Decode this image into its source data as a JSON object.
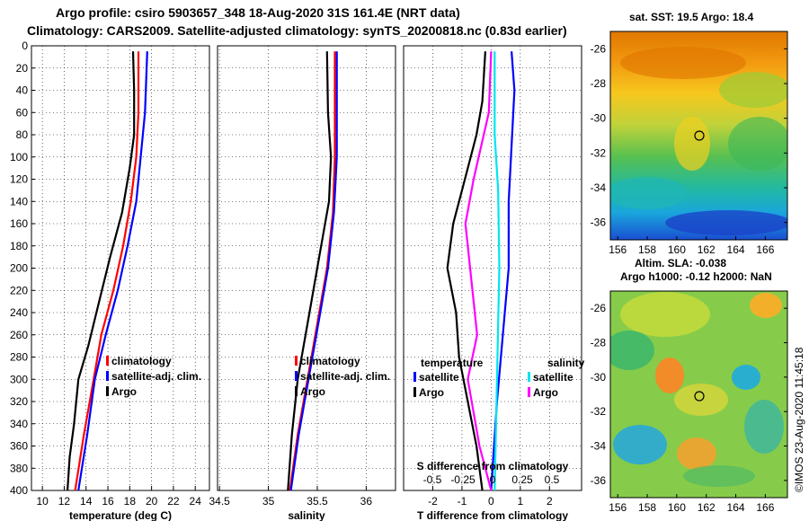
{
  "title_line1": "Argo profile: csiro 5903657_348 18-Aug-2020 31S 161.4E (NRT data)",
  "title_line2": "Climatology: CARS2009. Satellite-adjusted climatology: synTS_20200818.nc (0.83d earlier)",
  "map_top_title": "sat. SST: 19.5 Argo: 18.4",
  "map_bottom_title_1": "Altim. SLA: -0.038",
  "map_bottom_title_2": "Argo h1000: -0.12 h2000: NaN",
  "stamp": "©IMOS 23-Aug-2020 11:45:18",
  "colors": {
    "climatology": "#ff0000",
    "satellite": "#0000ff",
    "argo": "#000000",
    "sal_satellite": "#00e5ee",
    "sal_argo": "#ff00ff"
  },
  "chart_data": [
    {
      "type": "line",
      "name": "temperature",
      "xlabel": "temperature (deg C)",
      "xlim": [
        9,
        25.3
      ],
      "ylim": [
        400,
        0
      ],
      "xticks": [
        10,
        12,
        14,
        16,
        18,
        20,
        22,
        24
      ],
      "yticks": [
        0,
        20,
        40,
        60,
        80,
        100,
        120,
        140,
        160,
        180,
        200,
        220,
        240,
        260,
        280,
        300,
        320,
        340,
        360,
        380,
        400
      ],
      "legend": [
        "climatology",
        "satellite-adj. clim.",
        "Argo"
      ],
      "series": [
        {
          "name": "climatology",
          "points": [
            [
              18.8,
              5
            ],
            [
              18.8,
              60
            ],
            [
              18.6,
              100
            ],
            [
              18.1,
              140
            ],
            [
              17.4,
              180
            ],
            [
              16.5,
              220
            ],
            [
              15.4,
              260
            ],
            [
              14.7,
              300
            ],
            [
              13.8,
              350
            ],
            [
              13.0,
              400
            ]
          ]
        },
        {
          "name": "satellite-adj. clim.",
          "points": [
            [
              19.6,
              5
            ],
            [
              19.4,
              60
            ],
            [
              19.0,
              100
            ],
            [
              18.6,
              140
            ],
            [
              17.8,
              180
            ],
            [
              16.9,
              220
            ],
            [
              15.8,
              260
            ],
            [
              14.8,
              300
            ],
            [
              14.1,
              350
            ],
            [
              13.3,
              400
            ]
          ]
        },
        {
          "name": "Argo",
          "points": [
            [
              18.3,
              5
            ],
            [
              18.4,
              40
            ],
            [
              18.4,
              80
            ],
            [
              18.0,
              110
            ],
            [
              17.3,
              150
            ],
            [
              16.2,
              190
            ],
            [
              15.2,
              230
            ],
            [
              14.2,
              270
            ],
            [
              13.3,
              300
            ],
            [
              12.9,
              340
            ],
            [
              12.5,
              370
            ],
            [
              12.3,
              400
            ]
          ]
        }
      ]
    },
    {
      "type": "line",
      "name": "salinity",
      "xlabel": "salinity",
      "xlim": [
        34.48,
        36.3
      ],
      "ylim": [
        400,
        0
      ],
      "xticks": [
        34.5,
        35,
        35.5,
        36
      ],
      "xtick_labels": [
        "34.5",
        "35",
        "35.5",
        "36"
      ],
      "legend": [
        "climatology",
        "satellite-adj. clim.",
        "Argo"
      ],
      "series": [
        {
          "name": "climatology",
          "points": [
            [
              35.68,
              5
            ],
            [
              35.68,
              100
            ],
            [
              35.66,
              150
            ],
            [
              35.6,
              200
            ],
            [
              35.5,
              250
            ],
            [
              35.4,
              300
            ],
            [
              35.3,
              350
            ],
            [
              35.22,
              400
            ]
          ]
        },
        {
          "name": "satellite-adj. clim.",
          "points": [
            [
              35.7,
              5
            ],
            [
              35.7,
              100
            ],
            [
              35.67,
              150
            ],
            [
              35.61,
              200
            ],
            [
              35.51,
              250
            ],
            [
              35.41,
              300
            ],
            [
              35.31,
              350
            ],
            [
              35.23,
              400
            ]
          ]
        },
        {
          "name": "Argo",
          "points": [
            [
              35.6,
              5
            ],
            [
              35.61,
              60
            ],
            [
              35.64,
              100
            ],
            [
              35.62,
              140
            ],
            [
              35.52,
              190
            ],
            [
              35.42,
              240
            ],
            [
              35.3,
              300
            ],
            [
              35.24,
              350
            ],
            [
              35.2,
              400
            ]
          ]
        }
      ]
    },
    {
      "type": "line",
      "name": "difference",
      "xlabel": "T difference from climatology",
      "top_label": "S difference from climatology",
      "xlim": [
        -3,
        3.1
      ],
      "ylim": [
        400,
        0
      ],
      "xticks": [
        -2,
        -1,
        0,
        1,
        2
      ],
      "xtick_labels": [
        "-2",
        "-1",
        "0",
        "1",
        "2"
      ],
      "top_ticks": [
        "-0.5",
        "-0.25",
        "0",
        "0.25",
        "0.5"
      ],
      "legend_temperature": "temperature",
      "legend_salinity": "salinity",
      "legend_temp_entries": [
        "satellite",
        "Argo"
      ],
      "legend_sal_entries": [
        "satellite",
        "Argo"
      ],
      "series": [
        {
          "name": "T satellite",
          "points": [
            [
              0.7,
              5
            ],
            [
              0.8,
              40
            ],
            [
              0.7,
              90
            ],
            [
              0.6,
              140
            ],
            [
              0.6,
              200
            ],
            [
              0.4,
              260
            ],
            [
              0.2,
              320
            ],
            [
              0.1,
              360
            ],
            [
              0,
              400
            ]
          ]
        },
        {
          "name": "T Argo",
          "points": [
            [
              -0.2,
              5
            ],
            [
              -0.3,
              50
            ],
            [
              -0.5,
              80
            ],
            [
              -0.9,
              120
            ],
            [
              -1.3,
              160
            ],
            [
              -1.5,
              200
            ],
            [
              -1.2,
              240
            ],
            [
              -1.1,
              280
            ],
            [
              -0.8,
              320
            ],
            [
              -0.5,
              360
            ],
            [
              -0.3,
              400
            ]
          ]
        },
        {
          "name": "S satellite",
          "points": [
            [
              0.03,
              5
            ],
            [
              0.03,
              80
            ],
            [
              0.06,
              130
            ],
            [
              0.07,
              200
            ],
            [
              0.05,
              300
            ],
            [
              0.03,
              400
            ]
          ]
        },
        {
          "name": "S Argo",
          "points": [
            [
              0,
              5
            ],
            [
              -0.02,
              60
            ],
            [
              -0.15,
              120
            ],
            [
              -0.22,
              160
            ],
            [
              -0.18,
              200
            ],
            [
              -0.12,
              260
            ],
            [
              -0.2,
              300
            ],
            [
              -0.1,
              360
            ],
            [
              0,
              400
            ]
          ]
        }
      ]
    },
    {
      "type": "heatmap",
      "name": "sst-map",
      "title": "sat. SST: 19.5 Argo: 18.4",
      "xticks": [
        156,
        158,
        160,
        162,
        164,
        166
      ],
      "yticks": [
        -26,
        -28,
        -30,
        -32,
        -34,
        -36
      ],
      "xlim": [
        155.5,
        167.5
      ],
      "ylim": [
        -37,
        -25
      ],
      "float_location": [
        161.4,
        -31
      ]
    },
    {
      "type": "heatmap",
      "name": "sla-map",
      "title": "Altim. SLA: -0.038",
      "xticks": [
        156,
        158,
        160,
        162,
        164,
        166
      ],
      "yticks": [
        -26,
        -28,
        -30,
        -32,
        -34,
        -36
      ],
      "xlim": [
        155.5,
        167.5
      ],
      "ylim": [
        -37,
        -25
      ],
      "float_location": [
        161.4,
        -31
      ]
    }
  ]
}
